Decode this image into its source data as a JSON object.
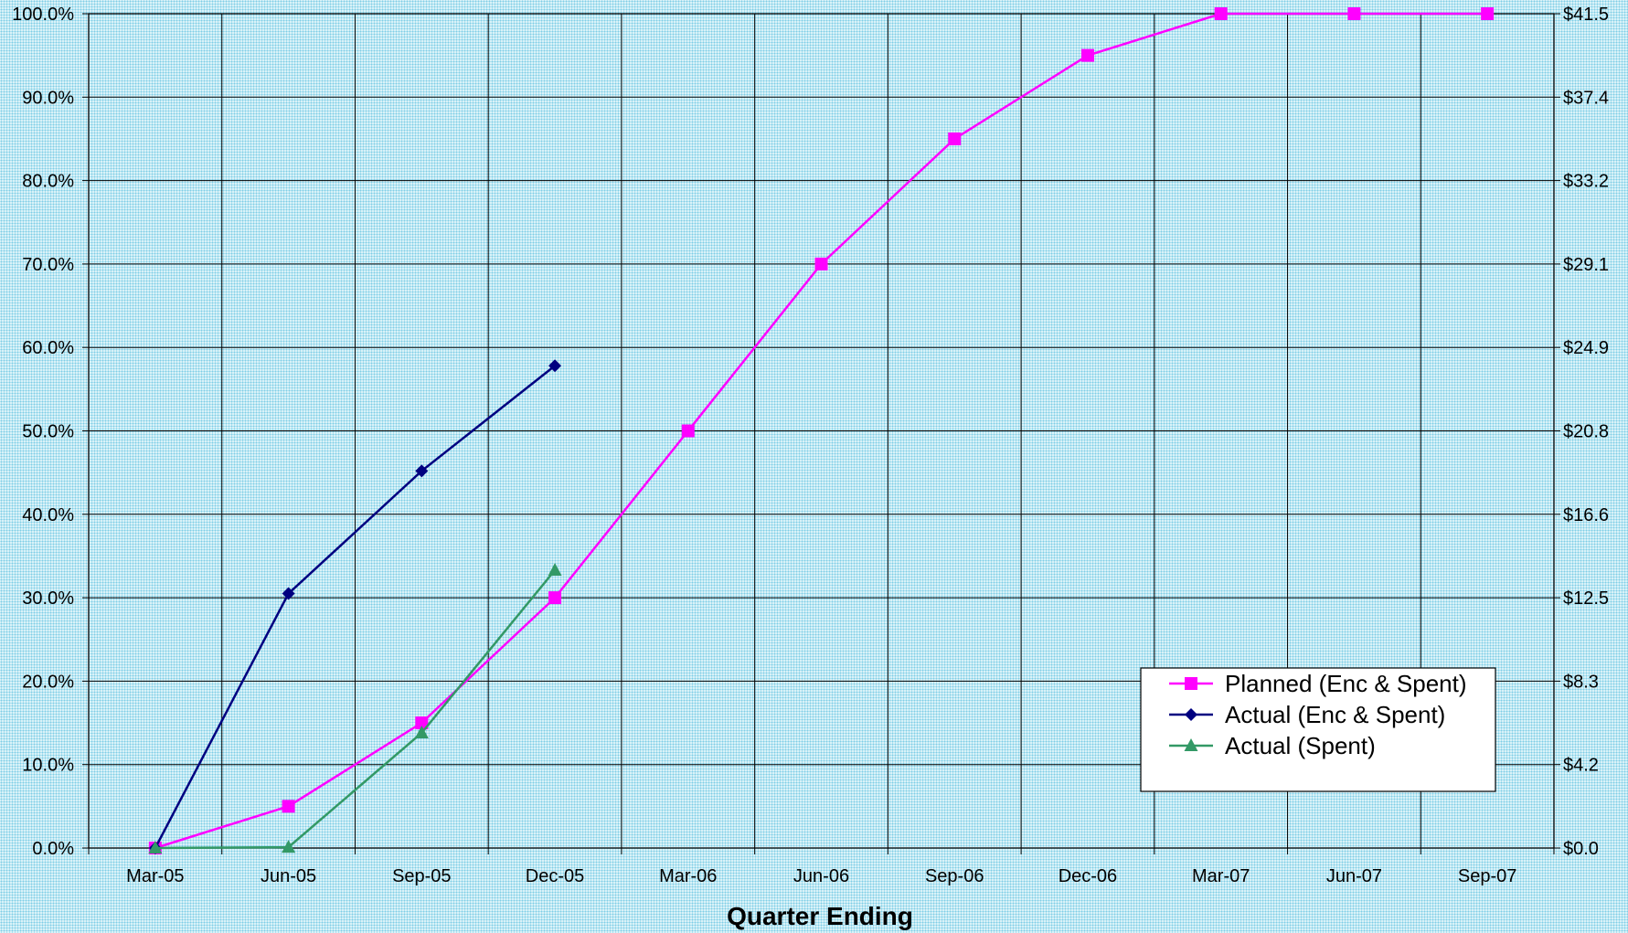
{
  "chart_data": {
    "type": "line",
    "categories": [
      "Mar-05",
      "Jun-05",
      "Sep-05",
      "Dec-05",
      "Mar-06",
      "Jun-06",
      "Sep-06",
      "Dec-06",
      "Mar-07",
      "Jun-07",
      "Sep-07"
    ],
    "xlabel": "Quarter Ending",
    "ylabel": "",
    "ylim": [
      0,
      100
    ],
    "y_ticks": [
      "0.0%",
      "10.0%",
      "20.0%",
      "30.0%",
      "40.0%",
      "50.0%",
      "60.0%",
      "70.0%",
      "80.0%",
      "90.0%",
      "100.0%"
    ],
    "y2lim": [
      0,
      41.5
    ],
    "y2_ticks": [
      "$0.0",
      "$4.2",
      "$8.3",
      "$12.5",
      "$16.6",
      "$20.8",
      "$24.9",
      "$29.1",
      "$33.2",
      "$37.4",
      "$41.5"
    ],
    "grid": true,
    "legend_position": "bottom-right",
    "series": [
      {
        "name": "Planned (Enc & Spent)",
        "color": "#ff00ff",
        "marker": "square",
        "values": [
          0,
          5,
          15,
          30,
          50,
          70,
          85,
          95,
          100,
          100,
          100
        ]
      },
      {
        "name": "Actual (Enc & Spent)",
        "color": "#000080",
        "marker": "diamond",
        "values": [
          0,
          30.5,
          45.2,
          57.8,
          null,
          null,
          null,
          null,
          null,
          null,
          null
        ]
      },
      {
        "name": "Actual (Spent)",
        "color": "#339966",
        "marker": "triangle",
        "values": [
          0,
          0.1,
          13.8,
          33.3,
          null,
          null,
          null,
          null,
          null,
          null,
          null
        ]
      }
    ]
  }
}
